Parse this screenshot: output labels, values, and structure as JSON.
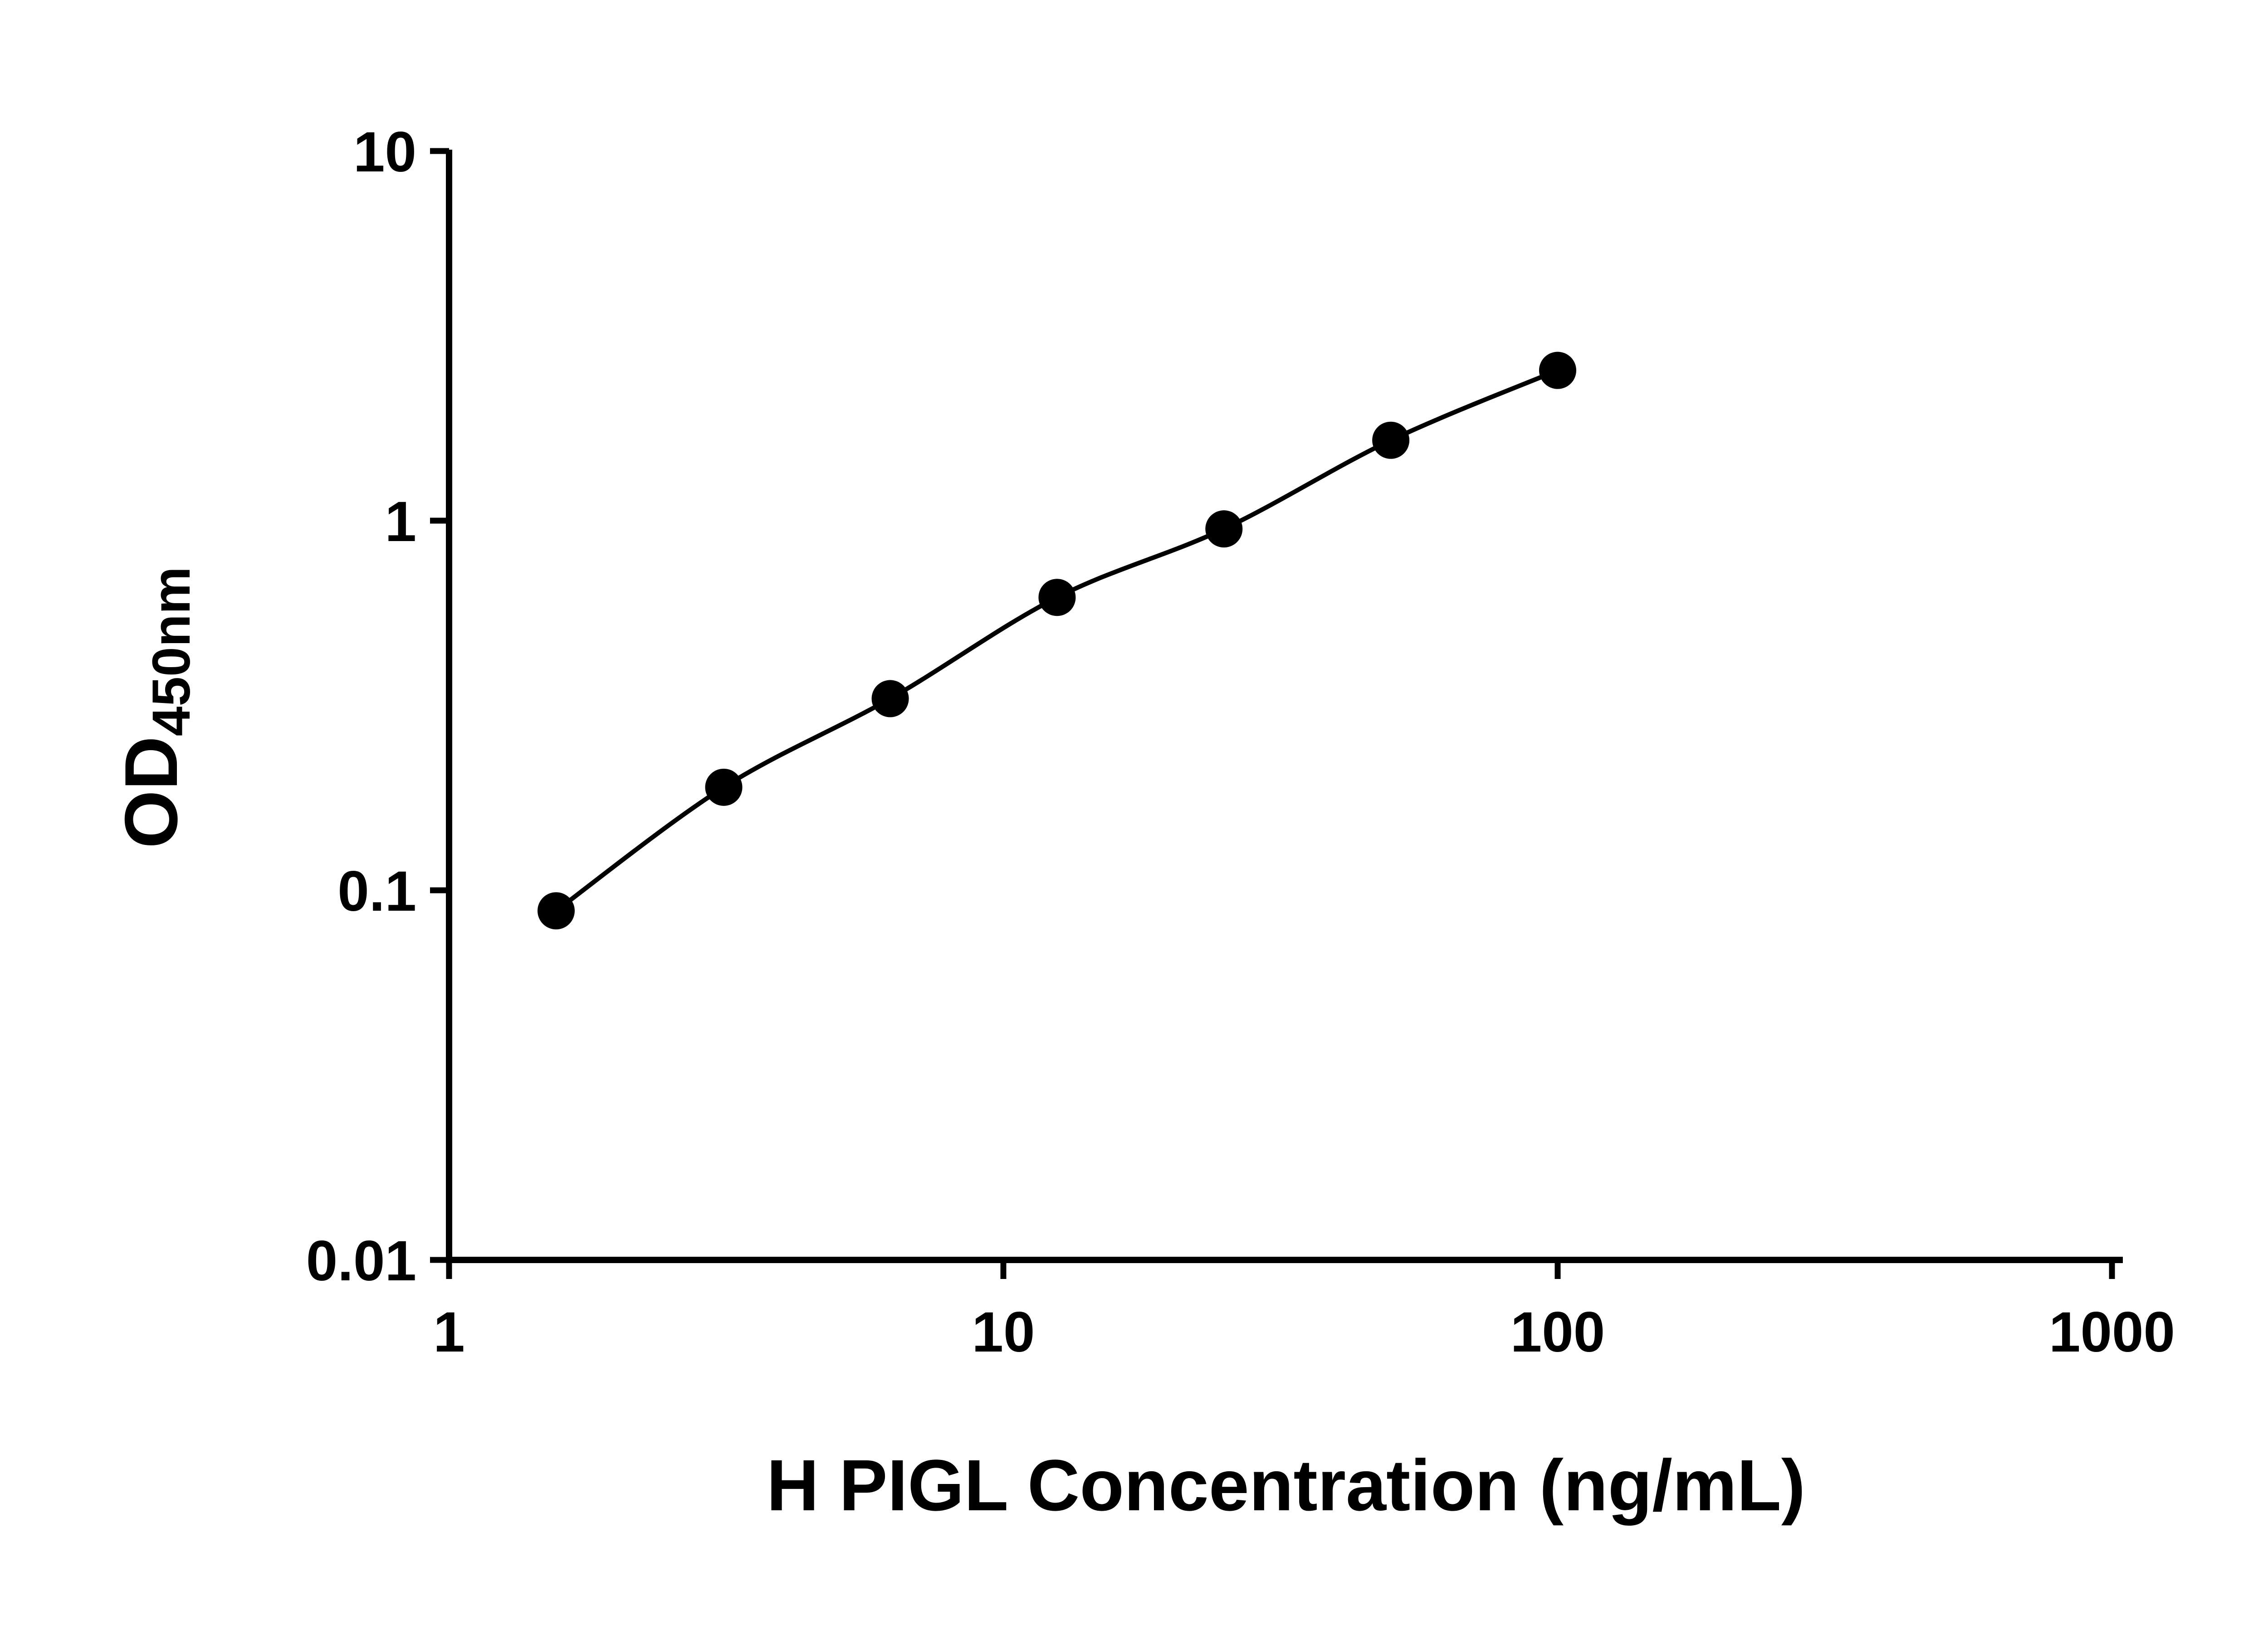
{
  "chart_data": {
    "type": "scatter",
    "x": [
      1.56,
      3.13,
      6.25,
      12.5,
      25,
      50,
      100
    ],
    "y": [
      0.088,
      0.19,
      0.33,
      0.62,
      0.95,
      1.65,
      2.55
    ],
    "title": "",
    "xlabel": "H PIGL Concentration (ng/mL)",
    "ylabel_main": "OD",
    "ylabel_sub": "450nm",
    "x_scale": "log",
    "y_scale": "log",
    "xlim": [
      1,
      1000
    ],
    "ylim": [
      0.01,
      10
    ],
    "x_ticks": [
      1,
      10,
      100,
      1000
    ],
    "x_tick_labels": [
      "1",
      "10",
      "100",
      "1000"
    ],
    "y_ticks": [
      0.01,
      0.1,
      1,
      10
    ],
    "y_tick_labels": [
      "0.01",
      "0.1",
      "1",
      "10"
    ],
    "grid": false,
    "legend": "none",
    "marker_color": "#000000",
    "line_color": "#000000",
    "axis_color": "#000000",
    "background": "#ffffff"
  }
}
